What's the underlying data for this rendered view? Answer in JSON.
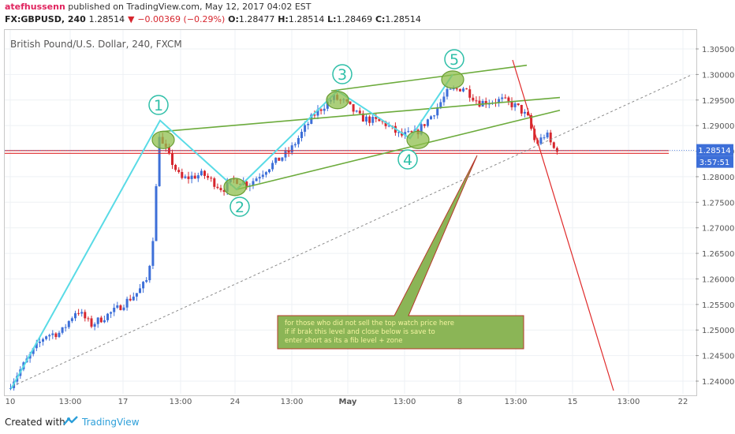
{
  "header": {
    "author": "atefhussenn",
    "published": " published on TradingView.com, May 12, 2017 04:02 EST",
    "symbol": "FX:GBPUSD, 240",
    "last": "1.28514",
    "change": "−0.00369 (−0.29%)",
    "o_label": "O:",
    "o_val": "1.28477",
    "h_label": "H:",
    "h_val": "1.28514",
    "l_label": "L:",
    "l_val": "1.28469",
    "c_label": "C:",
    "c_val": "1.28514"
  },
  "footer": {
    "created": "Created with",
    "brand": "TradingView"
  },
  "colors": {
    "up": "#3d6fd8",
    "down": "#d6262e",
    "wave": "#59dbe6",
    "channel": "#6cab3c",
    "ellipse": "#8fbf4d",
    "redline": "#e02a2a",
    "callout_bg": "#8bb556",
    "callout_text": "#f4f4a0"
  },
  "chart_data": {
    "type": "candlestick",
    "title": "British Pound/U.S. Dollar, 240, FXCM",
    "ylim": [
      1.2375,
      1.3075
    ],
    "yticks": [
      "1.30500",
      "1.30000",
      "1.29500",
      "1.29000",
      "1.28500",
      "1.28000",
      "1.27500",
      "1.27000",
      "1.26500",
      "1.26000",
      "1.25500",
      "1.25000",
      "1.24500",
      "1.24000"
    ],
    "xticks": [
      "10",
      "13:00",
      "17",
      "13:00",
      "24",
      "13:00",
      "May",
      "13:00",
      "8",
      "13:00",
      "15",
      "13:00",
      "22"
    ],
    "last_price": "1.28514",
    "countdown": "3:57:51",
    "wave_points": [
      {
        "label": "1",
        "price": 1.291
      },
      {
        "label": "2",
        "price": 1.2775
      },
      {
        "label": "3",
        "price": 1.2968
      },
      {
        "label": "4",
        "price": 1.2875
      },
      {
        "label": "5",
        "price": 1.3
      }
    ],
    "annotation": "for those who did not sell the top watch price here if if brak this level and close below is save to enter short as its a fib level + zone"
  }
}
